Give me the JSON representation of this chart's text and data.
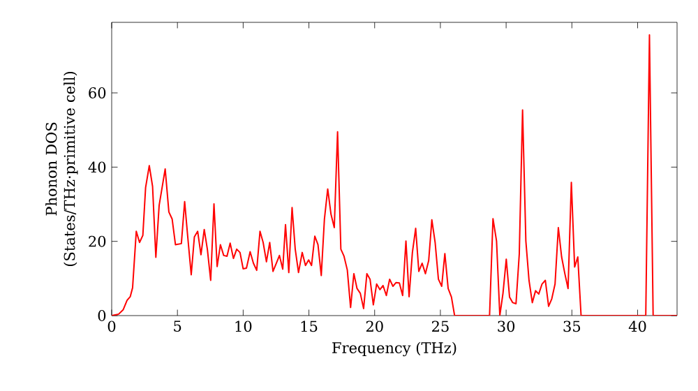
{
  "chart_data": {
    "type": "line",
    "xlabel": "Frequency (THz)",
    "ylabel": "Phonon DOS (States/THz·primitive cell)",
    "xlim": [
      0,
      43
    ],
    "ylim": [
      0,
      79
    ],
    "xticks": [
      0,
      5,
      10,
      15,
      20,
      25,
      30,
      35,
      40
    ],
    "yticks": [
      0,
      20,
      40,
      60
    ],
    "marker": "none",
    "line_style": "solid",
    "series": [
      {
        "color": "#ff0000",
        "x": [
          0,
          0.53,
          0.88,
          1.17,
          1.41,
          1.59,
          1.87,
          2.12,
          2.37,
          2.58,
          2.86,
          3.11,
          3.36,
          3.61,
          4.07,
          4.35,
          4.6,
          4.85,
          5.3,
          5.55,
          5.76,
          6.05,
          6.29,
          6.54,
          6.79,
          7.04,
          7.28,
          7.53,
          7.78,
          8.02,
          8.27,
          8.52,
          8.77,
          9.01,
          9.26,
          9.51,
          9.76,
          10.0,
          10.25,
          10.53,
          10.78,
          11.03,
          11.28,
          11.52,
          11.77,
          12.02,
          12.27,
          12.52,
          12.76,
          13.01,
          13.22,
          13.47,
          13.72,
          13.96,
          14.21,
          14.49,
          14.74,
          14.98,
          15.2,
          15.45,
          15.69,
          15.94,
          16.18,
          16.43,
          16.68,
          16.93,
          17.18,
          17.43,
          17.67,
          17.92,
          18.17,
          18.42,
          18.66,
          18.91,
          19.16,
          19.41,
          19.65,
          19.9,
          20.15,
          20.4,
          20.64,
          20.89,
          21.14,
          21.39,
          21.63,
          21.88,
          22.13,
          22.38,
          22.62,
          22.87,
          23.12,
          23.36,
          23.61,
          23.86,
          24.11,
          24.35,
          24.6,
          24.85,
          25.1,
          25.34,
          25.59,
          25.84,
          26.08,
          28.74,
          29.0,
          29.27,
          29.52,
          29.76,
          30.01,
          30.26,
          30.5,
          30.75,
          31.0,
          31.25,
          31.5,
          31.74,
          31.99,
          32.24,
          32.48,
          32.73,
          32.98,
          33.23,
          33.47,
          33.72,
          33.97,
          34.22,
          34.46,
          34.71,
          34.96,
          35.21,
          35.45,
          35.7,
          40.62,
          40.9,
          41.18,
          43
        ],
        "values": [
          0,
          0.4,
          1.6,
          4.1,
          5.1,
          7.5,
          22.7,
          19.7,
          21.6,
          34.5,
          40.4,
          34.8,
          15.7,
          29.7,
          39.5,
          27.9,
          26,
          19.1,
          19.4,
          30.7,
          22.2,
          11,
          21.2,
          22.7,
          16.4,
          23.2,
          17.8,
          9.5,
          30.1,
          13.2,
          19.1,
          16.2,
          16,
          19.5,
          15.4,
          17.9,
          17,
          12.6,
          12.8,
          17.2,
          14.1,
          12.2,
          22.7,
          19.7,
          14.5,
          19.7,
          11.9,
          14.1,
          16.2,
          12.5,
          24.5,
          11.6,
          29.1,
          17.9,
          11.6,
          17,
          13.5,
          15,
          13.5,
          21.4,
          19.1,
          10.8,
          26.0,
          34.1,
          27.3,
          23.7,
          49.5,
          17.9,
          16,
          12.3,
          2.2,
          11.3,
          7.3,
          6,
          1.9,
          11.3,
          9.8,
          2.9,
          8.5,
          7,
          8.1,
          5.4,
          9.8,
          7.9,
          8.9,
          8.8,
          5.4,
          20.1,
          5.1,
          17,
          23.5,
          11.9,
          14.1,
          11.3,
          14.8,
          25.8,
          19.7,
          9.8,
          7.9,
          16.7,
          7.3,
          5,
          0,
          0,
          26.1,
          20.1,
          0,
          6,
          15.2,
          5,
          3.5,
          3.2,
          16.6,
          55.4,
          20.1,
          9.5,
          3.5,
          6.7,
          5.8,
          8.5,
          9.5,
          2.5,
          4.5,
          8.5,
          23.7,
          15.8,
          11.4,
          7.3,
          35.9,
          13.1,
          15.8,
          0,
          0,
          75.6,
          0,
          0
        ]
      }
    ]
  }
}
